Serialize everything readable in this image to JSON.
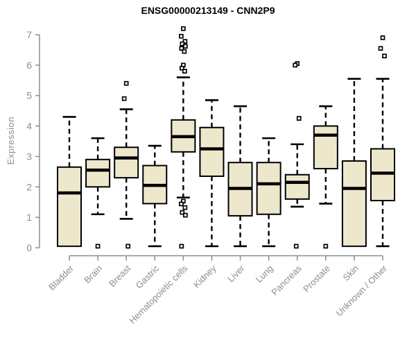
{
  "chart_data": {
    "type": "boxplot",
    "title": "ENSG00000213149 - CNN2P9",
    "ylabel": "Expression",
    "xlabel": "",
    "ylim": [
      0,
      7
    ],
    "yticks": [
      0,
      1,
      2,
      3,
      4,
      5,
      6,
      7
    ],
    "grid": false,
    "legend": null,
    "categories": [
      "Bladder",
      "Brain",
      "Breast",
      "Gastric",
      "Hematopoietic cells",
      "Kidney",
      "Liver",
      "Lung",
      "Pancreas",
      "Prostate",
      "Skin",
      "Unknown / Other"
    ],
    "series": [
      {
        "category": "Bladder",
        "whisker_low": 0.05,
        "q1": 0.05,
        "median": 1.8,
        "q3": 2.65,
        "whisker_high": 4.3,
        "outliers": []
      },
      {
        "category": "Brain",
        "whisker_low": 1.1,
        "q1": 2.0,
        "median": 2.55,
        "q3": 2.9,
        "whisker_high": 3.6,
        "outliers": [
          0.05
        ]
      },
      {
        "category": "Breast",
        "whisker_low": 0.95,
        "q1": 2.3,
        "median": 2.95,
        "q3": 3.3,
        "whisker_high": 4.55,
        "outliers": [
          5.4,
          4.9,
          0.05
        ]
      },
      {
        "category": "Gastric",
        "whisker_low": 0.05,
        "q1": 1.45,
        "median": 2.05,
        "q3": 2.7,
        "whisker_high": 3.35,
        "outliers": []
      },
      {
        "category": "Hematopoietic cells",
        "whisker_low": 1.65,
        "q1": 3.15,
        "median": 3.65,
        "q3": 4.2,
        "whisker_high": 5.6,
        "outliers": [
          7.2,
          6.95,
          6.78,
          6.7,
          6.62,
          6.55,
          6.45,
          6.0,
          5.9,
          5.8,
          1.53,
          1.44,
          1.32,
          1.16,
          1.07,
          0.05
        ]
      },
      {
        "category": "Kidney",
        "whisker_low": 0.05,
        "q1": 2.35,
        "median": 3.25,
        "q3": 3.95,
        "whisker_high": 4.85,
        "outliers": []
      },
      {
        "category": "Liver",
        "whisker_low": 0.05,
        "q1": 1.05,
        "median": 1.95,
        "q3": 2.8,
        "whisker_high": 4.65,
        "outliers": []
      },
      {
        "category": "Lung",
        "whisker_low": 0.05,
        "q1": 1.1,
        "median": 2.1,
        "q3": 2.8,
        "whisker_high": 3.6,
        "outliers": []
      },
      {
        "category": "Pancreas",
        "whisker_low": 1.35,
        "q1": 1.6,
        "median": 2.15,
        "q3": 2.4,
        "whisker_high": 3.4,
        "outliers": [
          6.05,
          6.0,
          4.25,
          0.05
        ]
      },
      {
        "category": "Prostate",
        "whisker_low": 1.45,
        "q1": 2.6,
        "median": 3.7,
        "q3": 4.0,
        "whisker_high": 4.65,
        "outliers": [
          0.05
        ]
      },
      {
        "category": "Skin",
        "whisker_low": 0.05,
        "q1": 0.05,
        "median": 1.95,
        "q3": 2.85,
        "whisker_high": 5.55,
        "outliers": []
      },
      {
        "category": "Unknown / Other",
        "whisker_low": 0.05,
        "q1": 1.55,
        "median": 2.45,
        "q3": 3.25,
        "whisker_high": 5.55,
        "outliers": [
          6.9,
          6.55,
          6.3
        ]
      }
    ],
    "colors": {
      "box_fill": "#ede8cc",
      "box_stroke": "#000000",
      "median": "#000000",
      "whisker": "#000000",
      "outlier_stroke": "#000000",
      "outlier_fill": "#ffffff",
      "axis": "#8c8c8c",
      "tick_label": "#8c8c8c",
      "title": "#000000"
    }
  }
}
